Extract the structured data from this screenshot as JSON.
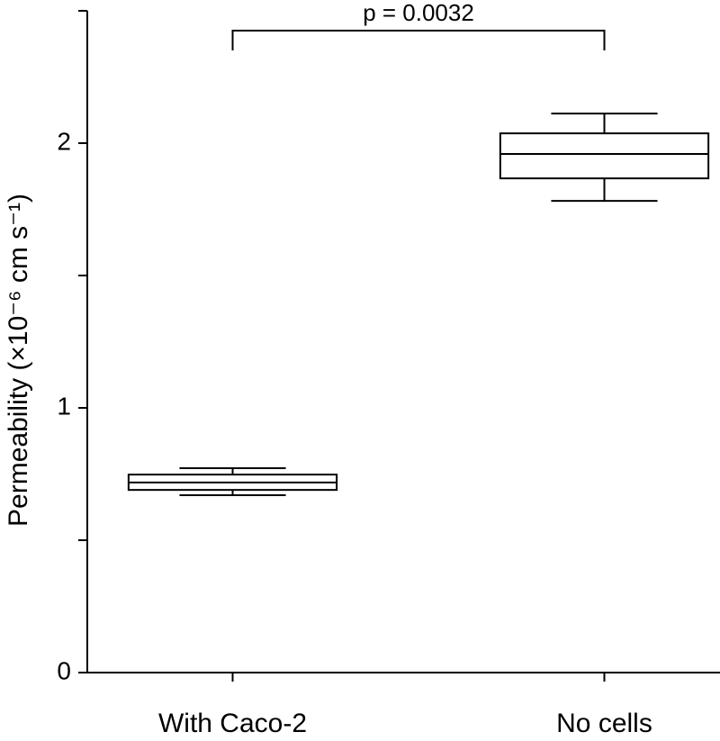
{
  "chart_data": {
    "type": "box",
    "ylabel": "Permeability (×10⁻⁶ cm s⁻¹)",
    "categories": [
      "With Caco-2",
      "No cells"
    ],
    "boxes": [
      {
        "whislo": 0.67,
        "q1": 0.69,
        "med": 0.718,
        "q3": 0.748,
        "whishi": 0.772
      },
      {
        "whislo": 1.782,
        "q1": 1.867,
        "med": 1.959,
        "q3": 2.037,
        "whishi": 2.112
      }
    ],
    "ylim": [
      0,
      2.5
    ],
    "yticks": [
      0,
      1,
      2
    ],
    "minor_yticks": [
      0.5,
      1.5,
      2.5
    ],
    "color": "#000000",
    "annotation": "p = 0.0032"
  }
}
